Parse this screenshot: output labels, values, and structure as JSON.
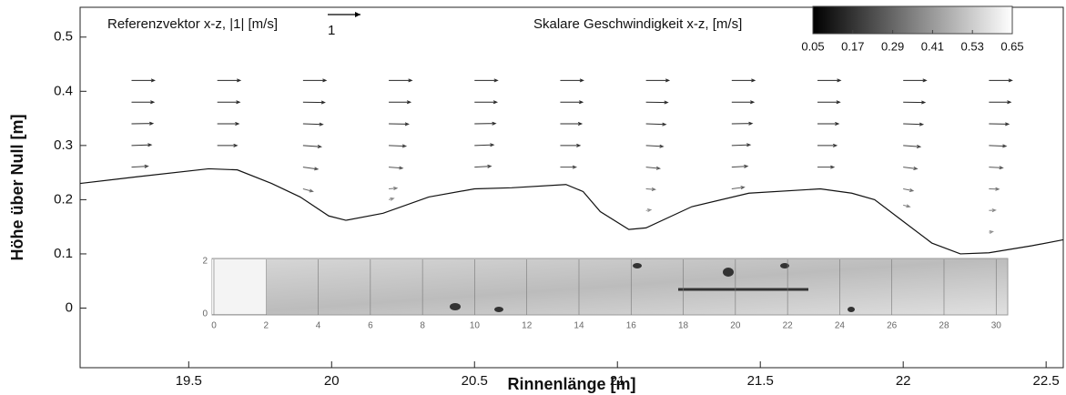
{
  "chart_data": {
    "type": "vector",
    "xlabel": "Rinnenlänge [m]",
    "ylabel": "Höhe über Null [m]",
    "reference_title": "Referenzvektor x-z, |1| [m/s]",
    "reference_vector": 1,
    "colorbar_title": "Skalare Geschwindigkeit x-z, [m/s]",
    "clim": [
      0.05,
      0.65
    ],
    "colorbar_ticks": [
      0.05,
      0.17,
      0.29,
      0.41,
      0.53,
      0.65
    ],
    "xlim": [
      19.12,
      22.56
    ],
    "ylim": [
      -0.11,
      0.555
    ],
    "xticks": [
      19.5,
      20,
      20.5,
      21,
      21.5,
      22,
      22.5
    ],
    "yticks": [
      0,
      0.1,
      0.2,
      0.3,
      0.4,
      0.5
    ],
    "bed": {
      "x": [
        19.12,
        19.315,
        19.57,
        19.67,
        19.79,
        19.89,
        19.99,
        20.05,
        20.18,
        20.34,
        20.5,
        20.63,
        20.82,
        20.88,
        20.94,
        21.04,
        21.1,
        21.26,
        21.46,
        21.71,
        21.82,
        21.9,
        22.0,
        22.1,
        22.2,
        22.3,
        22.45,
        22.56
      ],
      "y": [
        0.23,
        0.242,
        0.257,
        0.255,
        0.23,
        0.205,
        0.17,
        0.162,
        0.175,
        0.205,
        0.22,
        0.222,
        0.228,
        0.215,
        0.178,
        0.145,
        0.148,
        0.187,
        0.212,
        0.22,
        0.212,
        0.2,
        0.16,
        0.12,
        0.1,
        0.102,
        0.115,
        0.126
      ]
    },
    "vectors": {
      "x": [
        19.3,
        19.3,
        19.3,
        19.3,
        19.3,
        19.6,
        19.6,
        19.6,
        19.6,
        19.9,
        19.9,
        19.9,
        19.9,
        19.9,
        19.9,
        20.2,
        20.2,
        20.2,
        20.2,
        20.2,
        20.2,
        20.2,
        20.5,
        20.5,
        20.5,
        20.5,
        20.5,
        20.8,
        20.8,
        20.8,
        20.8,
        20.8,
        21.1,
        21.1,
        21.1,
        21.1,
        21.1,
        21.1,
        21.1,
        21.4,
        21.4,
        21.4,
        21.4,
        21.4,
        21.4,
        21.7,
        21.7,
        21.7,
        21.7,
        21.7,
        22.0,
        22.0,
        22.0,
        22.0,
        22.0,
        22.0,
        22.0,
        22.3,
        22.3,
        22.3,
        22.3,
        22.3,
        22.3,
        22.3,
        22.3
      ],
      "y": [
        0.42,
        0.38,
        0.34,
        0.3,
        0.26,
        0.42,
        0.38,
        0.34,
        0.3,
        0.42,
        0.38,
        0.34,
        0.3,
        0.26,
        0.22,
        0.42,
        0.38,
        0.34,
        0.3,
        0.26,
        0.22,
        0.2,
        0.42,
        0.38,
        0.34,
        0.3,
        0.26,
        0.42,
        0.38,
        0.34,
        0.3,
        0.26,
        0.42,
        0.38,
        0.34,
        0.3,
        0.26,
        0.22,
        0.18,
        0.42,
        0.38,
        0.34,
        0.3,
        0.26,
        0.22,
        0.42,
        0.38,
        0.34,
        0.3,
        0.26,
        0.42,
        0.38,
        0.34,
        0.3,
        0.26,
        0.22,
        0.19,
        0.42,
        0.38,
        0.34,
        0.3,
        0.26,
        0.22,
        0.18,
        0.14
      ],
      "u": [
        0.7,
        0.68,
        0.65,
        0.6,
        0.5,
        0.7,
        0.68,
        0.65,
        0.6,
        0.7,
        0.66,
        0.6,
        0.55,
        0.45,
        0.3,
        0.7,
        0.66,
        0.6,
        0.52,
        0.42,
        0.25,
        0.15,
        0.7,
        0.68,
        0.64,
        0.58,
        0.5,
        0.7,
        0.68,
        0.65,
        0.6,
        0.48,
        0.7,
        0.66,
        0.6,
        0.52,
        0.42,
        0.28,
        0.15,
        0.7,
        0.67,
        0.62,
        0.56,
        0.48,
        0.38,
        0.7,
        0.68,
        0.64,
        0.58,
        0.5,
        0.7,
        0.66,
        0.6,
        0.52,
        0.42,
        0.3,
        0.2,
        0.7,
        0.66,
        0.6,
        0.52,
        0.42,
        0.3,
        0.2,
        0.12
      ],
      "w": [
        0,
        0,
        0.01,
        0.02,
        0.03,
        0,
        0,
        0,
        0,
        0,
        -0.01,
        -0.02,
        -0.04,
        -0.06,
        -0.08,
        0,
        0,
        -0.01,
        -0.02,
        -0.03,
        0.02,
        0.04,
        0,
        0,
        0.01,
        0.02,
        0.03,
        0,
        0,
        0,
        0,
        0,
        0,
        -0.01,
        -0.02,
        -0.03,
        -0.04,
        -0.02,
        0.02,
        0,
        0,
        0.01,
        0.02,
        0.03,
        0.05,
        0,
        0,
        0,
        0,
        0,
        0,
        -0.01,
        -0.02,
        -0.04,
        -0.05,
        -0.06,
        -0.05,
        0,
        0,
        -0.01,
        -0.02,
        -0.02,
        -0.01,
        0.01,
        0.02
      ]
    },
    "inset": {
      "xlim": [
        0,
        30.2
      ],
      "ylim": [
        0,
        2.1
      ],
      "xticks": [
        0,
        2,
        4,
        6,
        8,
        10,
        12,
        14,
        16,
        18,
        20,
        22,
        24,
        26,
        28,
        30
      ],
      "yticks": [
        0,
        2
      ]
    }
  }
}
